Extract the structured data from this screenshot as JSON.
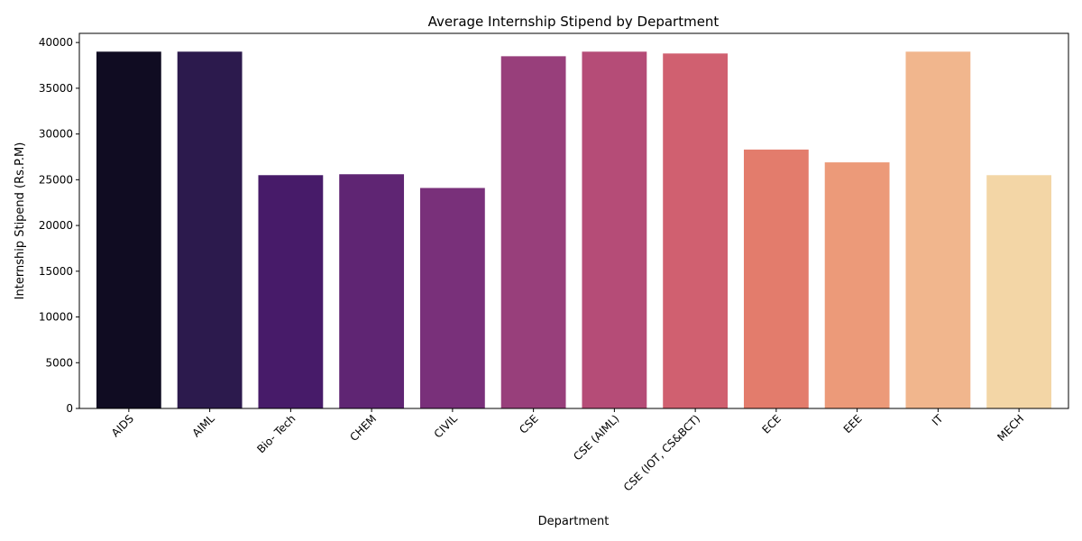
{
  "chart_data": {
    "type": "bar",
    "title": "Average Internship Stipend by Department",
    "xlabel": "Department",
    "ylabel": "Internship Stipend (Rs.P.M)",
    "categories": [
      "AIDS",
      "AIML",
      "Bio- Tech",
      "CHEM",
      "CIVIL",
      "CSE",
      "CSE (AIML)",
      "CSE (IOT, CS&BCT)",
      "ECE",
      "EEE",
      "IT",
      "MECH"
    ],
    "values": [
      39000,
      39000,
      25500,
      25600,
      24100,
      38500,
      39000,
      38800,
      28300,
      26900,
      39000,
      25500
    ],
    "colors": [
      "#100c22",
      "#2c1a4d",
      "#471b69",
      "#5f2573",
      "#79307a",
      "#983f7b",
      "#b54c77",
      "#d06070",
      "#e37c6c",
      "#ec9a79",
      "#f1b68d",
      "#f3d6a6"
    ],
    "ylim": [
      0,
      41000
    ],
    "yticks": [
      0,
      5000,
      10000,
      15000,
      20000,
      25000,
      30000,
      35000,
      40000
    ],
    "xtick_rotation": 45,
    "grid": false,
    "legend": "none"
  }
}
